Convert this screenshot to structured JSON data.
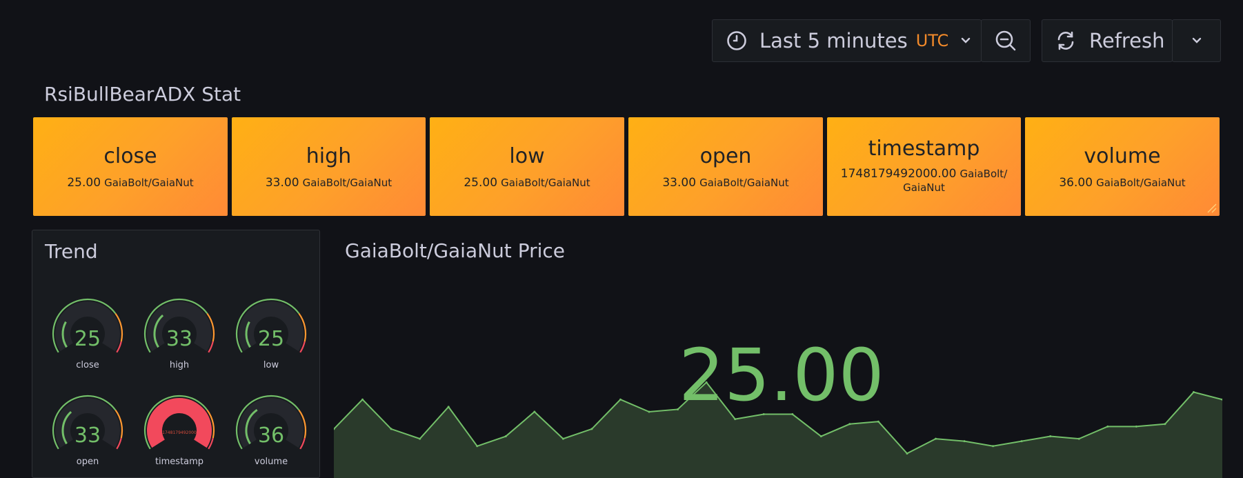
{
  "toolbar": {
    "time_range_label": "Last 5 minutes",
    "timezone_label": "UTC",
    "refresh_label": "Refresh"
  },
  "stat_panel": {
    "title": "RsiBullBearADX Stat",
    "items": [
      {
        "name": "close",
        "value": "25.00",
        "unit": "GaiaBolt/GaiaNut"
      },
      {
        "name": "high",
        "value": "33.00",
        "unit": "GaiaBolt/GaiaNut"
      },
      {
        "name": "low",
        "value": "25.00",
        "unit": "GaiaBolt/GaiaNut"
      },
      {
        "name": "open",
        "value": "33.00",
        "unit": "GaiaBolt/GaiaNut"
      },
      {
        "name": "timestamp",
        "value": "1748179492000.00",
        "unit_line1": "GaiaBolt/",
        "unit_line2": "GaiaNut"
      },
      {
        "name": "volume",
        "value": "36.00",
        "unit": "GaiaBolt/GaiaNut"
      }
    ]
  },
  "trend_panel": {
    "title": "Trend",
    "gauges": [
      {
        "label": "close",
        "value": "25",
        "level": 0.25
      },
      {
        "label": "high",
        "value": "33",
        "level": 0.33
      },
      {
        "label": "low",
        "value": "25",
        "level": 0.25
      },
      {
        "label": "open",
        "value": "33",
        "level": 0.33
      },
      {
        "label": "timestamp",
        "value": "1748179492000",
        "level": 1.0
      },
      {
        "label": "volume",
        "value": "36",
        "level": 0.36
      }
    ]
  },
  "price_panel": {
    "title": "GaiaBolt/GaiaNut Price",
    "value": "25.00",
    "sparkline": [
      30,
      42,
      30,
      26,
      39,
      23,
      27,
      37,
      26,
      30,
      42,
      37,
      38,
      49,
      34,
      36,
      36,
      27,
      32,
      33,
      20,
      26,
      25,
      23,
      25,
      27,
      26,
      31,
      31,
      32,
      45,
      42
    ]
  },
  "colors": {
    "stat_background": "#ffa21c",
    "value_green": "#73bf69",
    "gauge_red": "#f2495c",
    "timezone_orange": "#f28a2a"
  }
}
